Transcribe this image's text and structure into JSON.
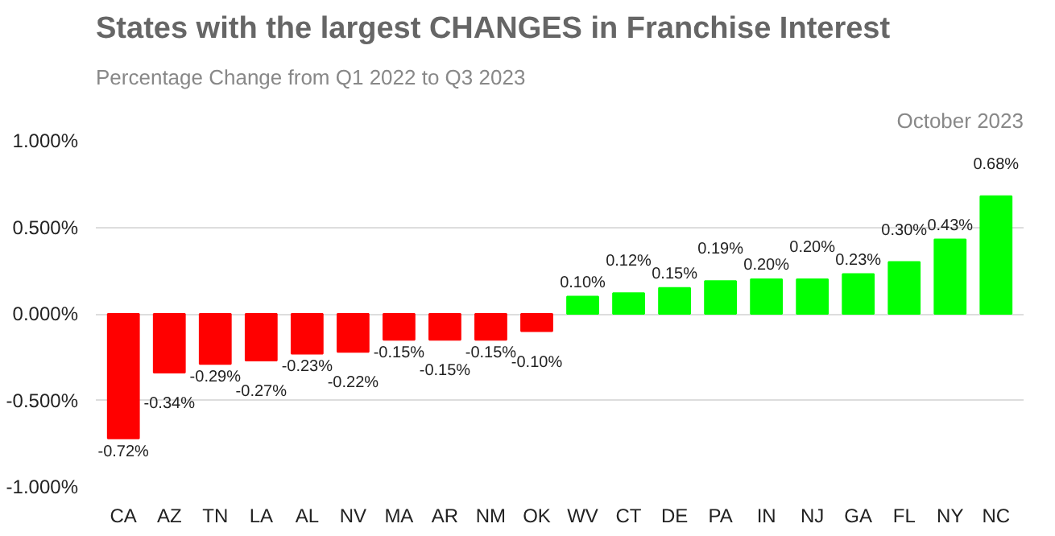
{
  "chart_data": {
    "type": "bar",
    "title": "States with the largest CHANGES in Franchise Interest",
    "subtitle": "Percentage Change from Q1 2022 to Q3 2023",
    "annotations": [
      "October 2023"
    ],
    "categories": [
      "CA",
      "AZ",
      "TN",
      "LA",
      "AL",
      "NV",
      "MA",
      "AR",
      "NM",
      "OK",
      "WV",
      "CT",
      "DE",
      "PA",
      "IN",
      "NJ",
      "GA",
      "FL",
      "NY",
      "NC"
    ],
    "values": [
      -0.72,
      -0.34,
      -0.29,
      -0.27,
      -0.23,
      -0.22,
      -0.15,
      -0.15,
      -0.15,
      -0.1,
      0.1,
      0.12,
      0.15,
      0.19,
      0.2,
      0.2,
      0.23,
      0.3,
      0.43,
      0.68
    ],
    "value_labels": [
      "-0.72%",
      "-0.34%",
      "-0.29%",
      "-0.27%",
      "-0.23%",
      "-0.22%",
      "-0.15%",
      "-0.15%",
      "-0.15%",
      "-0.10%",
      "0.10%",
      "0.12%",
      "0.15%",
      "0.19%",
      "0.20%",
      "0.20%",
      "0.23%",
      "0.30%",
      "0.43%",
      "0.68%"
    ],
    "colors": [
      "#ff0000",
      "#ff0000",
      "#ff0000",
      "#ff0000",
      "#ff0000",
      "#ff0000",
      "#ff0000",
      "#ff0000",
      "#ff0000",
      "#ff0000",
      "#00ff00",
      "#00ff00",
      "#00ff00",
      "#00ff00",
      "#00ff00",
      "#00ff00",
      "#00ff00",
      "#00ff00",
      "#00ff00",
      "#00ff00"
    ],
    "ylim": [
      -1.0,
      1.0
    ],
    "yticks": [
      {
        "value": -1.0,
        "label": "-1.000%"
      },
      {
        "value": -0.5,
        "label": "-0.500%"
      },
      {
        "value": 0,
        "label": "0.000%"
      },
      {
        "value": 0.5,
        "label": "0.500%"
      },
      {
        "value": 1.0,
        "label": "1.000%"
      }
    ],
    "grid": "y"
  }
}
